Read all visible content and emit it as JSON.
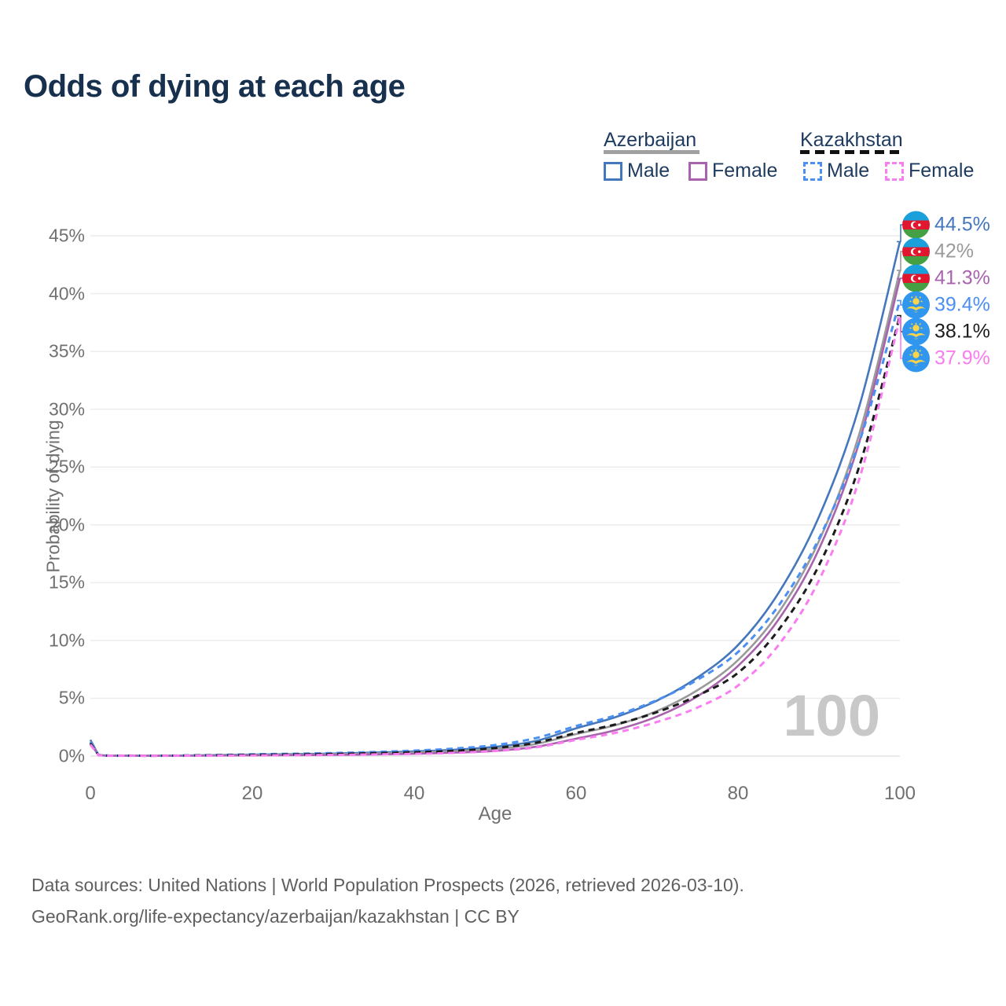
{
  "title": "Odds of dying at each age",
  "legend": {
    "groups": [
      {
        "label": "Azerbaijan",
        "line_style": "solid",
        "line_color": "#a0a0a0",
        "items": [
          {
            "id": "az-male",
            "label": "Male",
            "color": "#4477bb",
            "dashed": false
          },
          {
            "id": "az-female",
            "label": "Female",
            "color": "#a863ad",
            "dashed": false
          }
        ]
      },
      {
        "label": "Kazakhstan",
        "line_style": "dashed",
        "line_color": "#1c1c1c",
        "items": [
          {
            "id": "kz-male",
            "label": "Male",
            "color": "#4b8ff2",
            "dashed": true
          },
          {
            "id": "kz-female",
            "label": "Female",
            "color": "#f97df0",
            "dashed": true
          }
        ]
      }
    ]
  },
  "chart_data": {
    "type": "line",
    "title": "Odds of dying at each age",
    "xlabel": "Age",
    "ylabel": "Probability of dying",
    "xlim": [
      0,
      100
    ],
    "ylim": [
      0,
      45
    ],
    "x_ticks": [
      0,
      20,
      40,
      60,
      80,
      100
    ],
    "y_ticks": [
      "0%",
      "5%",
      "10%",
      "15%",
      "20%",
      "25%",
      "30%",
      "35%",
      "40%",
      "45%"
    ],
    "grid": "horizontal",
    "legend_position": "top-right",
    "watermark": "100",
    "x": [
      0,
      1,
      5,
      10,
      15,
      20,
      25,
      30,
      35,
      40,
      45,
      50,
      55,
      60,
      65,
      70,
      75,
      80,
      85,
      90,
      95,
      100
    ],
    "series": [
      {
        "name": "Azerbaijan Male",
        "flag": "az",
        "color": "#4477bb",
        "dashed": false,
        "end_label": "44.5%",
        "end_value": 44.5,
        "values": [
          1.4,
          0.1,
          0.04,
          0.04,
          0.08,
          0.13,
          0.17,
          0.22,
          0.3,
          0.4,
          0.55,
          0.8,
          1.3,
          2.4,
          3.4,
          4.8,
          6.8,
          9.6,
          14.1,
          20.7,
          30.3,
          44.5
        ]
      },
      {
        "name": "Azerbaijan Both sexes",
        "flag": "az",
        "color": "#9a9a9a",
        "dashed": false,
        "end_label": "42%",
        "end_value": 42.0,
        "values": [
          1.25,
          0.09,
          0.035,
          0.035,
          0.06,
          0.1,
          0.13,
          0.16,
          0.22,
          0.3,
          0.42,
          0.62,
          1.05,
          1.9,
          2.7,
          3.9,
          5.7,
          8.3,
          12.4,
          18.6,
          27.9,
          42.0
        ]
      },
      {
        "name": "Azerbaijan Female",
        "flag": "az",
        "color": "#a863ad",
        "dashed": false,
        "end_label": "41.3%",
        "end_value": 41.3,
        "values": [
          1.1,
          0.08,
          0.03,
          0.03,
          0.045,
          0.06,
          0.08,
          0.1,
          0.14,
          0.2,
          0.3,
          0.45,
          0.8,
          1.5,
          2.27,
          3.42,
          5.17,
          7.8,
          11.8,
          17.9,
          27.2,
          41.3
        ]
      },
      {
        "name": "Kazakhstan Male",
        "flag": "kz",
        "color": "#4b8ff2",
        "dashed": true,
        "end_label": "39.4%",
        "end_value": 39.4,
        "values": [
          1.2,
          0.1,
          0.04,
          0.04,
          0.09,
          0.15,
          0.2,
          0.26,
          0.35,
          0.47,
          0.65,
          0.95,
          1.55,
          2.6,
          3.55,
          4.85,
          6.6,
          9.0,
          13.0,
          18.8,
          27.2,
          39.4
        ]
      },
      {
        "name": "Kazakhstan Both sexes",
        "flag": "kz",
        "color": "#1c1c1c",
        "dashed": true,
        "end_label": "38.1%",
        "end_value": 38.1,
        "values": [
          1.1,
          0.09,
          0.035,
          0.035,
          0.065,
          0.11,
          0.14,
          0.18,
          0.25,
          0.33,
          0.46,
          0.7,
          1.15,
          2.0,
          2.76,
          3.8,
          5.23,
          7.2,
          10.9,
          16.5,
          25.1,
          38.1
        ]
      },
      {
        "name": "Kazakhstan Female",
        "flag": "kz",
        "color": "#f97df0",
        "dashed": true,
        "end_label": "37.9%",
        "end_value": 37.9,
        "values": [
          1.0,
          0.08,
          0.03,
          0.03,
          0.04,
          0.055,
          0.075,
          0.1,
          0.14,
          0.19,
          0.28,
          0.44,
          0.75,
          1.4,
          2.03,
          2.95,
          4.2,
          6.1,
          9.6,
          15.2,
          24.0,
          37.9
        ]
      }
    ],
    "flag_colors": {
      "az": {
        "blue": "#1ba0dc",
        "red": "#e0172e",
        "green": "#44a043",
        "crescent": "#ffffff"
      },
      "kz": {
        "blue": "#3096ee",
        "gold": "#fbd44a"
      }
    }
  },
  "footer": {
    "line1": "Data sources: United Nations | World Population Prospects (2026, retrieved 2026-03-10).",
    "line2": "GeoRank.org/life-expectancy/azerbaijan/kazakhstan | CC BY"
  }
}
